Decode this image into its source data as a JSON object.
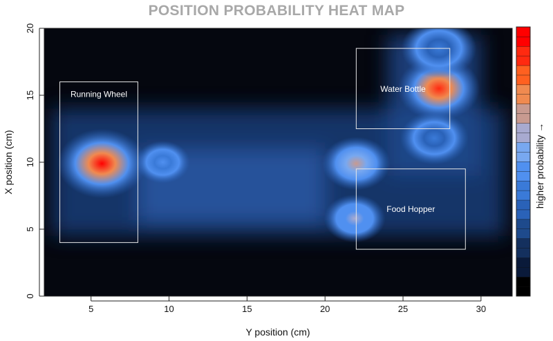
{
  "chart_data": {
    "type": "heatmap",
    "title": "POSITION PROBABILITY HEAT MAP",
    "xlabel": "Y position (cm)",
    "ylabel": "X position (cm)",
    "colorbar_label": "higher probability →",
    "xlim": [
      2,
      32
    ],
    "ylim": [
      0,
      20
    ],
    "xticks": [
      5,
      10,
      15,
      20,
      25,
      30
    ],
    "yticks": [
      0,
      5,
      10,
      15,
      20
    ],
    "colorscale": [
      "#000000",
      "#0a1a3a",
      "#14305e",
      "#1e4a8c",
      "#2a62b8",
      "#3a7ad8",
      "#5090f0",
      "#78a8f0",
      "#a8aad0",
      "#c89a90",
      "#f08a50",
      "#ff6020",
      "#ff2a10",
      "#ff0000"
    ],
    "hotspots": [
      {
        "x": 5.7,
        "y": 9.9,
        "intensity": 1.0,
        "spread": 1.3
      },
      {
        "x": 27.3,
        "y": 15.5,
        "intensity": 0.95,
        "spread": 1.2
      },
      {
        "x": 22.0,
        "y": 9.9,
        "intensity": 0.68,
        "spread": 1.0
      },
      {
        "x": 21.9,
        "y": 5.8,
        "intensity": 0.62,
        "spread": 0.9
      },
      {
        "x": 9.6,
        "y": 10.0,
        "intensity": 0.45,
        "spread": 0.8
      },
      {
        "x": 27.3,
        "y": 18.5,
        "intensity": 0.35,
        "spread": 1.1
      },
      {
        "x": 27.0,
        "y": 11.8,
        "intensity": 0.4,
        "spread": 1.0
      }
    ],
    "regions": [
      {
        "label": "Running Wheel",
        "x0": 3,
        "x1": 8,
        "y0": 4,
        "y1": 16
      },
      {
        "label": "Water Bottle",
        "x0": 22,
        "x1": 28,
        "y0": 12.5,
        "y1": 18.5
      },
      {
        "label": "Food Hopper",
        "x0": 22,
        "x1": 29,
        "y0": 3.5,
        "y1": 9.5
      }
    ]
  }
}
